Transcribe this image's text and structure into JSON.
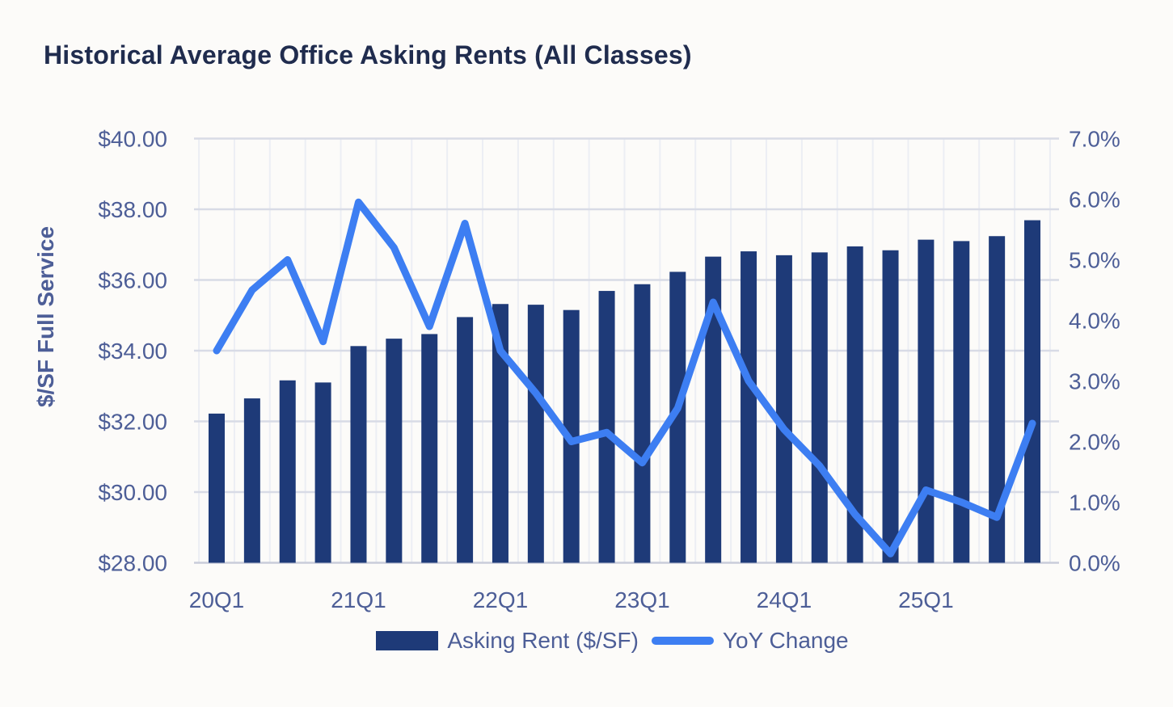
{
  "title": "Historical Average Office Asking Rents (All Classes)",
  "colors": {
    "title_text": "#202c4e",
    "axis_text": "#4d5e97",
    "bar": "#1e3a78",
    "line": "#3d7ef2",
    "gridline": "#d8dbe6",
    "baseline": "#c9cdda",
    "vertical_gridline": "#eceef4",
    "background": "#fcfbf9"
  },
  "chart_data": {
    "type": "bar",
    "subtype": "combo bar + line, dual y-axis",
    "categories": [
      "20Q1",
      "20Q2",
      "20Q3",
      "20Q4",
      "21Q1",
      "21Q2",
      "21Q3",
      "21Q4",
      "22Q1",
      "22Q2",
      "22Q3",
      "22Q4",
      "23Q1",
      "23Q2",
      "23Q3",
      "23Q4",
      "24Q1",
      "24Q2",
      "24Q3",
      "24Q4",
      "25Q1",
      "25Q2",
      "25Q3",
      "25Q4"
    ],
    "x_tick_labels": [
      "20Q1",
      "21Q1",
      "22Q1",
      "23Q1",
      "24Q1",
      "25Q1"
    ],
    "x_tick_indices": [
      0,
      4,
      8,
      12,
      16,
      20
    ],
    "series": [
      {
        "name": "Asking Rent ($/SF)",
        "type": "bar",
        "axis": "left",
        "values": [
          32.22,
          32.65,
          33.16,
          33.1,
          34.13,
          34.34,
          34.47,
          34.95,
          35.32,
          35.3,
          35.15,
          35.69,
          35.88,
          36.23,
          36.66,
          36.81,
          36.7,
          36.78,
          36.95,
          36.84,
          37.14,
          37.1,
          37.24,
          37.69
        ]
      },
      {
        "name": "YoY Change",
        "type": "line",
        "axis": "right",
        "values": [
          3.5,
          4.5,
          5.0,
          3.65,
          5.95,
          5.2,
          3.9,
          5.6,
          3.5,
          2.8,
          2.0,
          2.15,
          1.65,
          2.55,
          4.3,
          3.0,
          2.2,
          1.6,
          0.8,
          0.15,
          1.2,
          1.0,
          0.75,
          2.3
        ]
      }
    ],
    "left_axis": {
      "title": "$/SF Full Service",
      "min": 28,
      "max": 40,
      "tick_values": [
        28,
        30,
        32,
        34,
        36,
        38,
        40
      ],
      "tick_labels": [
        "$28.00",
        "$30.00",
        "$32.00",
        "$34.00",
        "$36.00",
        "$38.00",
        "$40.00"
      ]
    },
    "right_axis": {
      "title": "",
      "min": 0,
      "max": 7,
      "tick_values": [
        0,
        1,
        2,
        3,
        4,
        5,
        6,
        7
      ],
      "tick_labels": [
        "0.0%",
        "1.0%",
        "2.0%",
        "3.0%",
        "4.0%",
        "5.0%",
        "6.0%",
        "7.0%"
      ]
    },
    "grid": "horizontal gridlines at left-axis ticks, faint vertical category separators",
    "legend_position": "bottom center"
  }
}
